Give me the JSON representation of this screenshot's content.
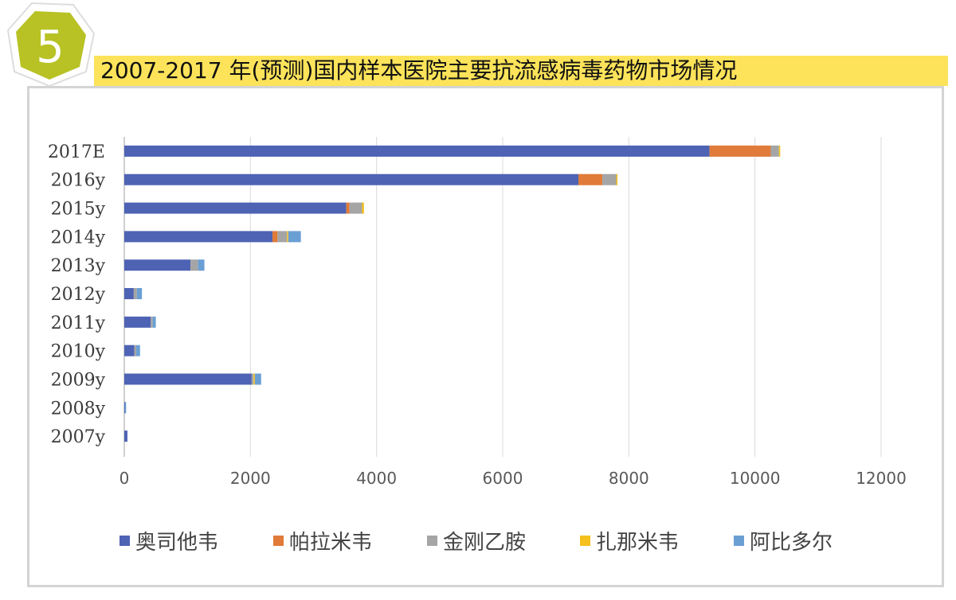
{
  "badge": {
    "number": "5",
    "color": "#b8c224"
  },
  "header": {
    "title": "2007-2017 年(预测)国内样本医院主要抗流感病毒药物市场情况",
    "highlight": "#fce35a"
  },
  "chart_data": {
    "type": "bar",
    "orientation": "horizontal",
    "stacked": true,
    "categories": [
      "2017E",
      "2016y",
      "2015y",
      "2014y",
      "2013y",
      "2012y",
      "2011y",
      "2010y",
      "2009y",
      "2008y",
      "2007y"
    ],
    "series": [
      {
        "name": "奥司他韦",
        "color": "#4e63b4",
        "values": [
          9280,
          7200,
          3520,
          2350,
          1050,
          150,
          420,
          160,
          2020,
          10,
          50
        ]
      },
      {
        "name": "帕拉米韦",
        "color": "#e07b39",
        "values": [
          970,
          380,
          50,
          80,
          0,
          0,
          0,
          0,
          0,
          0,
          0
        ]
      },
      {
        "name": "金刚乙胺",
        "color": "#a5a5a5",
        "values": [
          130,
          220,
          200,
          150,
          120,
          50,
          30,
          30,
          30,
          0,
          0
        ]
      },
      {
        "name": "扎那米韦",
        "color": "#f4c01c",
        "values": [
          20,
          20,
          30,
          20,
          0,
          0,
          0,
          0,
          20,
          0,
          0
        ]
      },
      {
        "name": "阿比多尔",
        "color": "#6a9fd4",
        "values": [
          0,
          0,
          0,
          200,
          100,
          80,
          50,
          60,
          100,
          5,
          0
        ]
      }
    ],
    "xticks": [
      "0",
      "2000",
      "4000",
      "6000",
      "8000",
      "10000",
      "12000"
    ],
    "xlim": [
      0,
      12000
    ],
    "grid": "vertical",
    "legend": "bottom"
  }
}
